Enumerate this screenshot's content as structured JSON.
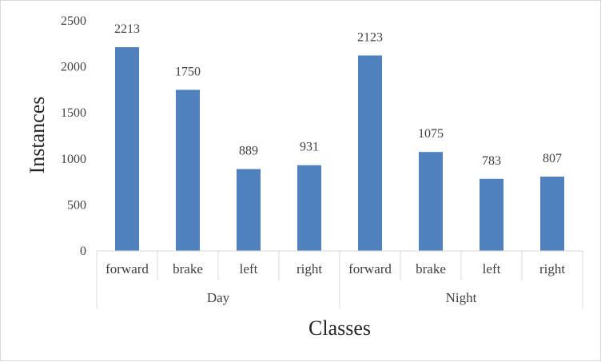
{
  "chart_data": {
    "type": "bar",
    "groups": [
      {
        "label": "Day",
        "categories": [
          "forward",
          "brake",
          "left",
          "right"
        ],
        "values": [
          2213,
          1750,
          889,
          931
        ]
      },
      {
        "label": "Night",
        "categories": [
          "forward",
          "brake",
          "left",
          "right"
        ],
        "values": [
          2123,
          1075,
          783,
          807
        ]
      }
    ],
    "xlabel": "Classes",
    "ylabel": "Instances",
    "ylim": [
      0,
      2500
    ],
    "yticks": [
      0,
      500,
      1000,
      1500,
      2000,
      2500
    ],
    "grid": false,
    "legend": "none",
    "bar_color": "#4f81bd",
    "data_labels": true
  }
}
